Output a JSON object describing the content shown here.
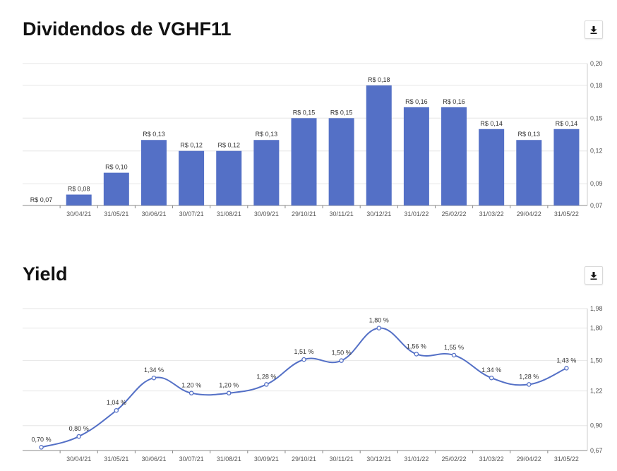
{
  "dividends_chart": {
    "title": "Dividendos de VGHF11",
    "download_icon": "download-icon",
    "chart_data": {
      "type": "bar",
      "title": "Dividendos de VGHF11",
      "categories": [
        "",
        "30/04/21",
        "31/05/21",
        "30/06/21",
        "30/07/21",
        "31/08/21",
        "30/09/21",
        "29/10/21",
        "30/11/21",
        "30/12/21",
        "31/01/22",
        "25/02/22",
        "31/03/22",
        "29/04/22",
        "31/05/22"
      ],
      "values": [
        0.07,
        0.08,
        0.1,
        0.13,
        0.12,
        0.12,
        0.13,
        0.15,
        0.15,
        0.18,
        0.16,
        0.16,
        0.14,
        0.13,
        0.14
      ],
      "data_labels": [
        "R$ 0,07",
        "R$ 0,08",
        "R$ 0,10",
        "R$ 0,13",
        "R$ 0,12",
        "R$ 0,12",
        "R$ 0,13",
        "R$ 0,15",
        "R$ 0,15",
        "R$ 0,18",
        "R$ 0,16",
        "R$ 0,16",
        "R$ 0,14",
        "R$ 0,13",
        "R$ 0,14"
      ],
      "y_ticks": [
        0.07,
        0.09,
        0.12,
        0.15,
        0.18,
        0.2
      ],
      "y_tick_labels": [
        "0,07",
        "0,09",
        "0,12",
        "0,15",
        "0,18",
        "0,20"
      ],
      "ylim": [
        0.07,
        0.2
      ],
      "grid": true,
      "y_axis_position": "right",
      "bar_color": "#5470c6"
    }
  },
  "yield_chart": {
    "title": "Yield",
    "download_icon": "download-icon",
    "chart_data": {
      "type": "line",
      "title": "Yield",
      "categories": [
        "",
        "30/04/21",
        "31/05/21",
        "30/06/21",
        "30/07/21",
        "31/08/21",
        "30/09/21",
        "29/10/21",
        "30/11/21",
        "30/12/21",
        "31/01/22",
        "25/02/22",
        "31/03/22",
        "29/04/22",
        "31/05/22"
      ],
      "values": [
        0.7,
        0.8,
        1.04,
        1.34,
        1.2,
        1.2,
        1.28,
        1.51,
        1.5,
        1.8,
        1.56,
        1.55,
        1.34,
        1.28,
        1.43
      ],
      "data_labels": [
        "0,70 %",
        "0,80 %",
        "1,04 %",
        "1,34 %",
        "1,20 %",
        "1,20 %",
        "1,28 %",
        "1,51 %",
        "1,50 %",
        "1,80 %",
        "1,56 %",
        "1,55 %",
        "1,34 %",
        "1,28 %",
        "1,43 %"
      ],
      "y_ticks": [
        0.67,
        0.9,
        1.22,
        1.5,
        1.8,
        1.98
      ],
      "y_tick_labels": [
        "0,67",
        "0,90",
        "1,22",
        "1,50",
        "1,80",
        "1,98"
      ],
      "ylim": [
        0.67,
        1.98
      ],
      "grid": true,
      "smooth": true,
      "y_axis_position": "right",
      "line_color": "#5470c6"
    }
  }
}
